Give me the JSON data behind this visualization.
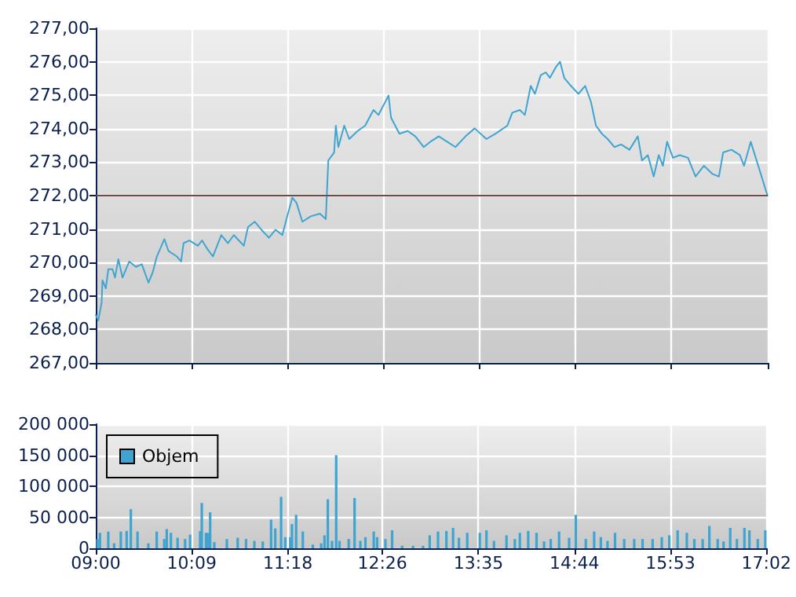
{
  "chart_data": [
    {
      "type": "line",
      "color": "#3fa5d0",
      "line_style": "solid",
      "marker": "none",
      "grid": true,
      "legend": false,
      "tick_labels": "y",
      "x": [
        9.0,
        9.03,
        9.07,
        9.08,
        9.12,
        9.15,
        9.2,
        9.23,
        9.27,
        9.32,
        9.4,
        9.48,
        9.55,
        9.63,
        9.68,
        9.73,
        9.82,
        9.87,
        9.97,
        10.02,
        10.05,
        10.12,
        10.22,
        10.27,
        10.33,
        10.4,
        10.5,
        10.58,
        10.65,
        10.77,
        10.82,
        10.9,
        10.98,
        11.07,
        11.15,
        11.23,
        11.28,
        11.35,
        11.4,
        11.47,
        11.57,
        11.68,
        11.75,
        11.78,
        11.85,
        11.87,
        11.9,
        11.97,
        12.03,
        12.13,
        12.22,
        12.32,
        12.38,
        12.5,
        12.53,
        12.63,
        12.73,
        12.82,
        12.92,
        13.0,
        13.1,
        13.2,
        13.3,
        13.42,
        13.53,
        13.67,
        13.78,
        13.92,
        13.98,
        14.07,
        14.13,
        14.2,
        14.25,
        14.32,
        14.38,
        14.43,
        14.5,
        14.55,
        14.6,
        14.68,
        14.77,
        14.85,
        14.92,
        14.98,
        15.05,
        15.12,
        15.2,
        15.28,
        15.38,
        15.48,
        15.53,
        15.6,
        15.67,
        15.73,
        15.78,
        15.83,
        15.9,
        15.98,
        16.08,
        16.17,
        16.27,
        16.37,
        16.45,
        16.5,
        16.6,
        16.7,
        16.75,
        16.83,
        16.92,
        17.03
      ],
      "values": [
        268.43,
        268.27,
        268.8,
        269.47,
        269.23,
        269.8,
        269.8,
        269.55,
        270.1,
        269.55,
        270.03,
        269.87,
        269.95,
        269.4,
        269.7,
        270.18,
        270.7,
        270.34,
        270.18,
        270.03,
        270.58,
        270.66,
        270.5,
        270.66,
        270.42,
        270.18,
        270.82,
        270.58,
        270.82,
        270.5,
        271.06,
        271.22,
        270.98,
        270.74,
        270.98,
        270.82,
        271.3,
        271.94,
        271.78,
        271.22,
        271.38,
        271.46,
        271.3,
        273.05,
        273.29,
        274.09,
        273.45,
        274.09,
        273.69,
        273.93,
        274.09,
        274.56,
        274.41,
        274.99,
        274.33,
        273.85,
        273.93,
        273.77,
        273.45,
        273.61,
        273.77,
        273.61,
        273.45,
        273.77,
        274.01,
        273.69,
        273.85,
        274.09,
        274.48,
        274.56,
        274.41,
        275.28,
        275.04,
        275.6,
        275.68,
        275.52,
        275.84,
        276.0,
        275.52,
        275.28,
        275.04,
        275.28,
        274.8,
        274.09,
        273.85,
        273.69,
        273.45,
        273.53,
        273.37,
        273.77,
        273.05,
        273.21,
        272.57,
        273.21,
        272.89,
        273.61,
        273.13,
        273.21,
        273.13,
        272.57,
        272.89,
        272.65,
        272.57,
        273.29,
        273.37,
        273.21,
        272.89,
        273.61,
        272.89,
        272.0
      ],
      "xlim": [
        9,
        17.0333
      ],
      "xticks": [
        {
          "value": 9,
          "label": null
        },
        {
          "value": 10.15,
          "label": null
        },
        {
          "value": 11.3,
          "label": null
        },
        {
          "value": 12.4333,
          "label": null
        },
        {
          "value": 13.5833,
          "label": null
        },
        {
          "value": 14.7333,
          "label": null
        },
        {
          "value": 15.8833,
          "label": null
        },
        {
          "value": 17.0333,
          "label": null
        }
      ],
      "ylim": [
        267,
        277
      ],
      "yticks": [
        {
          "value": 267,
          "label": "267,00"
        },
        {
          "value": 268,
          "label": "268,00"
        },
        {
          "value": 269,
          "label": "269,00"
        },
        {
          "value": 270,
          "label": "270,00"
        },
        {
          "value": 271,
          "label": "271,00"
        },
        {
          "value": 272,
          "label": "272,00"
        },
        {
          "value": 273,
          "label": "273,00"
        },
        {
          "value": 274,
          "label": "274,00"
        },
        {
          "value": 275,
          "label": "275,00"
        },
        {
          "value": 276,
          "label": "276,00"
        },
        {
          "value": 277,
          "label": "277,00"
        }
      ],
      "ref_lines": [
        {
          "axis": "y",
          "value": 272,
          "color": "#6e4a4a"
        }
      ]
    },
    {
      "type": "bar",
      "grid": true,
      "legend": "top left",
      "x": [
        9.02,
        9.05,
        9.15,
        9.22,
        9.3,
        9.37,
        9.42,
        9.5,
        9.63,
        9.73,
        9.82,
        9.85,
        9.9,
        9.98,
        10.07,
        10.13,
        10.25,
        10.27,
        10.32,
        10.35,
        10.37,
        10.42,
        10.57,
        10.7,
        10.8,
        10.9,
        11.0,
        11.1,
        11.15,
        11.22,
        11.27,
        11.33,
        11.35,
        11.4,
        11.48,
        11.6,
        11.7,
        11.74,
        11.78,
        11.83,
        11.88,
        11.92,
        12.03,
        12.1,
        12.17,
        12.23,
        12.33,
        12.37,
        12.47,
        12.55,
        12.67,
        12.8,
        12.92,
        13.0,
        13.1,
        13.2,
        13.28,
        13.35,
        13.45,
        13.6,
        13.68,
        13.77,
        13.92,
        14.02,
        14.08,
        14.18,
        14.28,
        14.37,
        14.45,
        14.55,
        14.67,
        14.75,
        14.87,
        14.97,
        15.05,
        15.13,
        15.22,
        15.33,
        15.45,
        15.55,
        15.67,
        15.78,
        15.87,
        15.97,
        16.08,
        16.17,
        16.27,
        16.35,
        16.45,
        16.52,
        16.6,
        16.68,
        16.77,
        16.83,
        16.93,
        17.02
      ],
      "series": [
        {
          "name": "Objem",
          "color": "#3fa5d0",
          "values": [
            15000,
            25000,
            27000,
            8000,
            27000,
            28000,
            63000,
            27000,
            8000,
            27000,
            15000,
            31000,
            25000,
            17000,
            15000,
            22000,
            28000,
            73000,
            25000,
            25000,
            58000,
            10000,
            15000,
            17000,
            15000,
            12000,
            11000,
            46000,
            32000,
            83000,
            18000,
            18000,
            39000,
            54000,
            27000,
            6000,
            8000,
            21000,
            79000,
            12000,
            150000,
            12000,
            15000,
            81000,
            12000,
            18000,
            27000,
            18000,
            15000,
            29000,
            4000,
            4000,
            4000,
            21000,
            27000,
            28000,
            33000,
            17000,
            25000,
            25000,
            29000,
            12000,
            21000,
            15000,
            25000,
            28000,
            25000,
            11000,
            15000,
            27000,
            17000,
            54000,
            15000,
            27000,
            18000,
            12000,
            25000,
            15000,
            15000,
            15000,
            15000,
            18000,
            21000,
            29000,
            25000,
            15000,
            15000,
            36000,
            15000,
            11000,
            33000,
            15000,
            33000,
            29000,
            15000,
            29000
          ]
        }
      ],
      "xlim": [
        9,
        17.0333
      ],
      "xticks": [
        {
          "value": 9,
          "label": "09:00"
        },
        {
          "value": 10.15,
          "label": "10:09"
        },
        {
          "value": 11.3,
          "label": "11:18"
        },
        {
          "value": 12.4333,
          "label": "12:26"
        },
        {
          "value": 13.5833,
          "label": "13:35"
        },
        {
          "value": 14.7333,
          "label": "14:44"
        },
        {
          "value": 15.8833,
          "label": "15:53"
        },
        {
          "value": 17.0333,
          "label": "17:02"
        }
      ],
      "ylim": [
        0,
        200000
      ],
      "yticks": [
        {
          "value": 0,
          "label": "0"
        },
        {
          "value": 50000,
          "label": "50 000"
        },
        {
          "value": 100000,
          "label": "100 000"
        },
        {
          "value": 150000,
          "label": "150 000"
        },
        {
          "value": 200000,
          "label": "200 000"
        }
      ]
    }
  ]
}
